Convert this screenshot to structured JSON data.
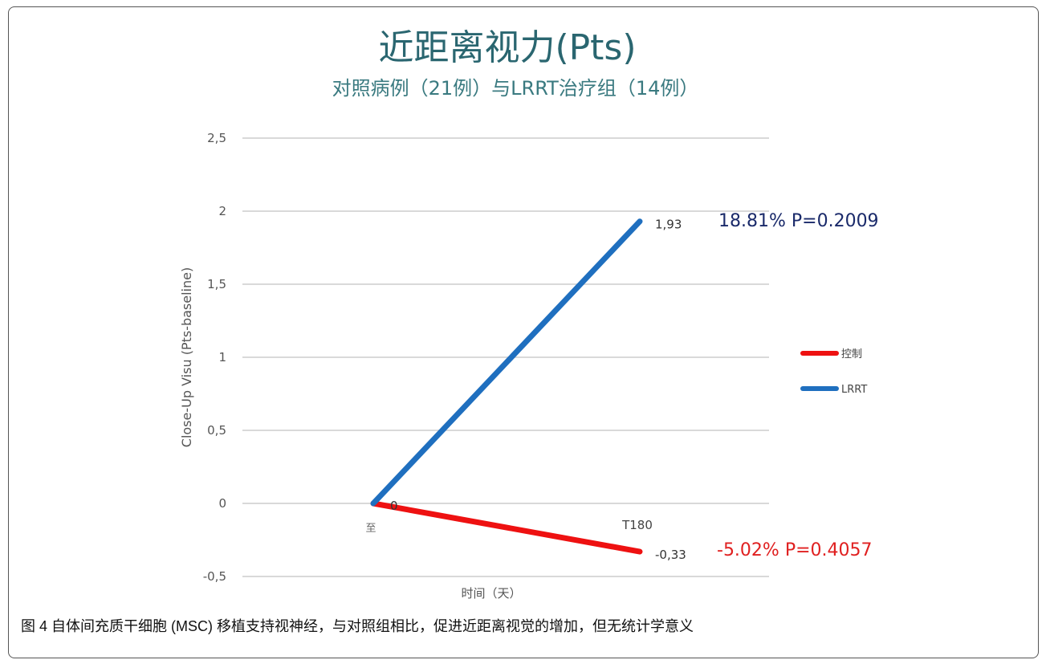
{
  "chart_data": {
    "type": "line",
    "title": "近距离视力(Pts)",
    "subtitle": "对照病例（21例）与LRRT治疗组（14例）",
    "xlabel": "时间（天）",
    "ylabel": "Close-Up Visu (Pts-baseline)",
    "categories": [
      "至",
      "T180"
    ],
    "ylim": [
      -0.5,
      2.5
    ],
    "yticks": [
      2.5,
      2,
      1.5,
      1,
      0.5,
      0,
      -0.5
    ],
    "ytick_labels": [
      "2,5",
      "2",
      "1,5",
      "1",
      "0,5",
      "0",
      "-0,5"
    ],
    "grid": true,
    "legend_position": "right",
    "series": [
      {
        "name": "控制",
        "values": [
          0,
          -0.33
        ],
        "color": "#ee1111",
        "data_labels": [
          "0",
          "-0,33"
        ],
        "annotation": "-5.02% P=0.4057",
        "annotation_color": "#e02020"
      },
      {
        "name": "LRRT",
        "values": [
          0,
          1.93
        ],
        "color": "#1f6fbf",
        "data_labels": [
          "",
          "1,93"
        ],
        "annotation": "18.81% P=0.2009",
        "annotation_color": "#1a2a6a"
      }
    ]
  },
  "caption": "图 4 自体间充质干细胞 (MSC) 移植支持视神经，与对照组相比，促进近距离视觉的增加，但无统计学意义",
  "colors": {
    "title": "#2a6670",
    "subtitle": "#3a7a80",
    "grid": "#d9d9d9",
    "axis_text": "#555555"
  }
}
